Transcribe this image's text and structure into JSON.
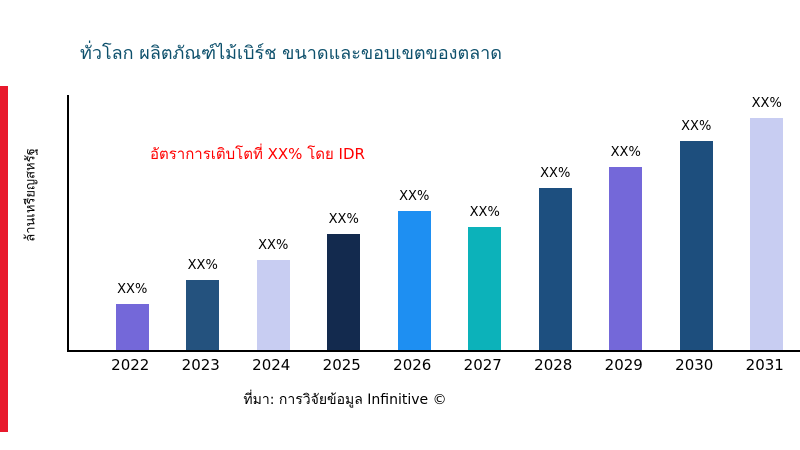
{
  "page": {
    "title": "ทั่วโลก ผลิตภัณฑ์ไม้เบิร์ช ขนาดและขอบเขตของตลาด",
    "title_color": "#0d506c",
    "accent_color": "#e8192c",
    "source": "ที่มา: การวิจัยข้อมูล Infinitive ©"
  },
  "chart_data": {
    "type": "bar",
    "title": "ทั่วโลก ผลิตภัณฑ์ไม้เบิร์ช ขนาดและขอบเขตของตลาด",
    "xlabel": "",
    "ylabel": "ล้านเหรียญสหรัฐ",
    "annotation": "อัตราการเติบโตที่ XX% โดย IDR",
    "annotation_color": "#ff0000",
    "categories": [
      "2022",
      "2023",
      "2024",
      "2025",
      "2026",
      "2027",
      "2028",
      "2029",
      "2030",
      "2031"
    ],
    "values": [
      20,
      30,
      39,
      50,
      60,
      53,
      70,
      79,
      90,
      100
    ],
    "bar_labels": [
      "XX%",
      "XX%",
      "XX%",
      "XX%",
      "XX%",
      "XX%",
      "XX%",
      "XX%",
      "XX%",
      "XX%"
    ],
    "bar_colors": [
      "#7468d9",
      "#24527e",
      "#c8cdf2",
      "#132a4e",
      "#1e8ff2",
      "#0cb2ba",
      "#1d4f7f",
      "#7468d9",
      "#1d4e7d",
      "#c8cdf2"
    ],
    "ylim": [
      0,
      110
    ],
    "grid": false,
    "legend": false,
    "source": "ที่มา: การวิจัยข้อมูล Infinitive ©"
  }
}
